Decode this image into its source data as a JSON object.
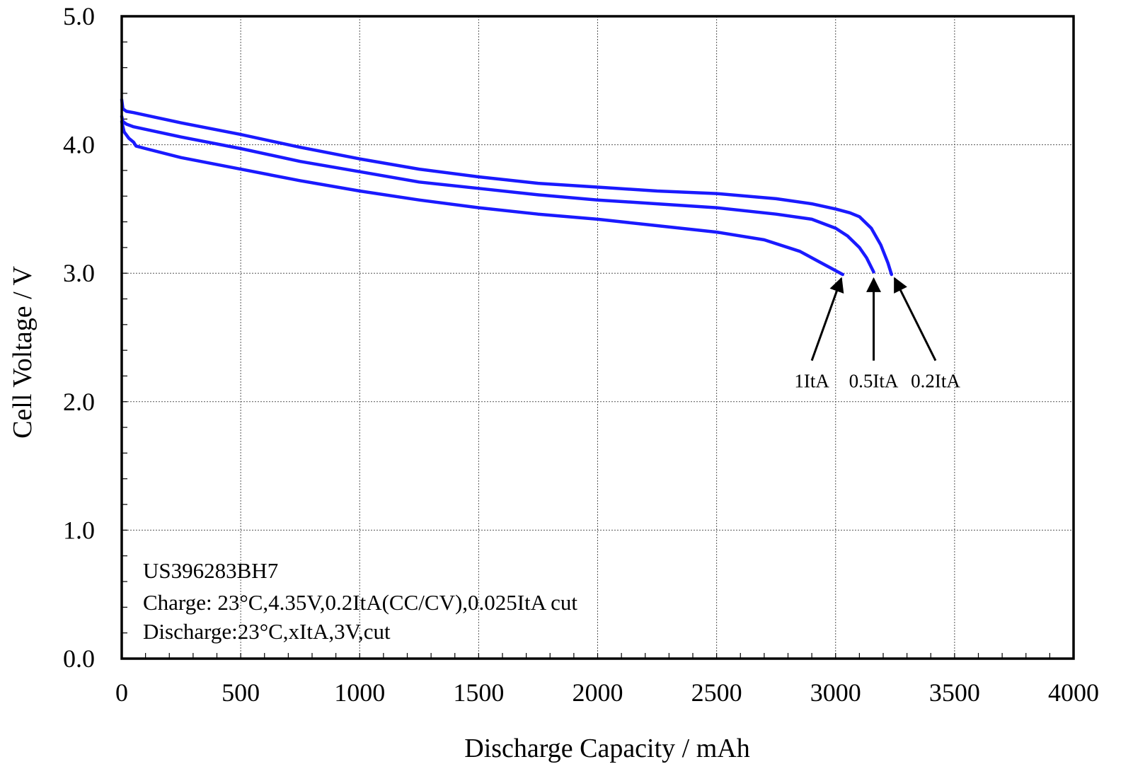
{
  "chart_data": {
    "type": "line",
    "title": "",
    "xlabel": "Discharge Capacity / mAh",
    "ylabel": "Cell Voltage / V",
    "xlim": [
      0,
      4000
    ],
    "ylim": [
      0.0,
      5.0
    ],
    "x_ticks": [
      0,
      500,
      1000,
      1500,
      2000,
      2500,
      3000,
      3500,
      4000
    ],
    "x_tick_labels": [
      "0",
      "500",
      "1000",
      "1500",
      "2000",
      "2500",
      "3000",
      "3500",
      "4000"
    ],
    "y_ticks": [
      0,
      1,
      2,
      3,
      4,
      5
    ],
    "y_tick_labels": [
      "0.0",
      "1.0",
      "2.0",
      "3.0",
      "4.0",
      "5.0"
    ],
    "grid": true,
    "line_color": "#1a1aff",
    "series": [
      {
        "name": "0.2ItA",
        "x": [
          0,
          5,
          20,
          50,
          100,
          250,
          500,
          750,
          1000,
          1250,
          1500,
          1750,
          2000,
          2250,
          2500,
          2750,
          2900,
          3000,
          3060,
          3100,
          3150,
          3190,
          3220,
          3235
        ],
        "y": [
          4.35,
          4.28,
          4.26,
          4.25,
          4.23,
          4.17,
          4.08,
          3.98,
          3.89,
          3.81,
          3.75,
          3.7,
          3.67,
          3.64,
          3.62,
          3.58,
          3.54,
          3.5,
          3.47,
          3.44,
          3.35,
          3.22,
          3.08,
          2.99
        ]
      },
      {
        "name": "0.5ItA",
        "x": [
          0,
          5,
          20,
          50,
          100,
          250,
          500,
          750,
          1000,
          1250,
          1500,
          1750,
          2000,
          2250,
          2500,
          2750,
          2900,
          3000,
          3050,
          3100,
          3130,
          3160
        ],
        "y": [
          4.22,
          4.18,
          4.16,
          4.14,
          4.12,
          4.06,
          3.97,
          3.87,
          3.79,
          3.71,
          3.66,
          3.61,
          3.57,
          3.54,
          3.51,
          3.46,
          3.42,
          3.35,
          3.29,
          3.2,
          3.12,
          3.01
        ]
      },
      {
        "name": "1ItA",
        "x": [
          0,
          10,
          30,
          50,
          60,
          100,
          250,
          500,
          750,
          1000,
          1250,
          1500,
          1750,
          2000,
          2250,
          2500,
          2700,
          2850,
          2930,
          2980,
          3010,
          3030
        ],
        "y": [
          4.18,
          4.1,
          4.05,
          4.02,
          3.99,
          3.97,
          3.9,
          3.81,
          3.72,
          3.64,
          3.57,
          3.51,
          3.46,
          3.42,
          3.37,
          3.32,
          3.26,
          3.17,
          3.09,
          3.04,
          3.01,
          2.99
        ]
      }
    ],
    "annotations": {
      "cell_model": "US396283BH7",
      "charge_condition": "Charge: 23°C,4.35V,0.2ItA(CC/CV),0.025ItA cut",
      "discharge_condition": "Discharge:23°C,xItA,3V,cut"
    },
    "arrow_labels": [
      {
        "text": "1ItA",
        "series": "1ItA",
        "points_to": [
          3030,
          2.99
        ],
        "label_at": [
          2900,
          2.32
        ]
      },
      {
        "text": "0.5ItA",
        "series": "0.5ItA",
        "points_to": [
          3160,
          2.99
        ],
        "label_at": [
          3160,
          2.32
        ]
      },
      {
        "text": "0.2ItA",
        "series": "0.2ItA",
        "points_to": [
          3240,
          2.99
        ],
        "label_at": [
          3420,
          2.32
        ]
      }
    ]
  }
}
